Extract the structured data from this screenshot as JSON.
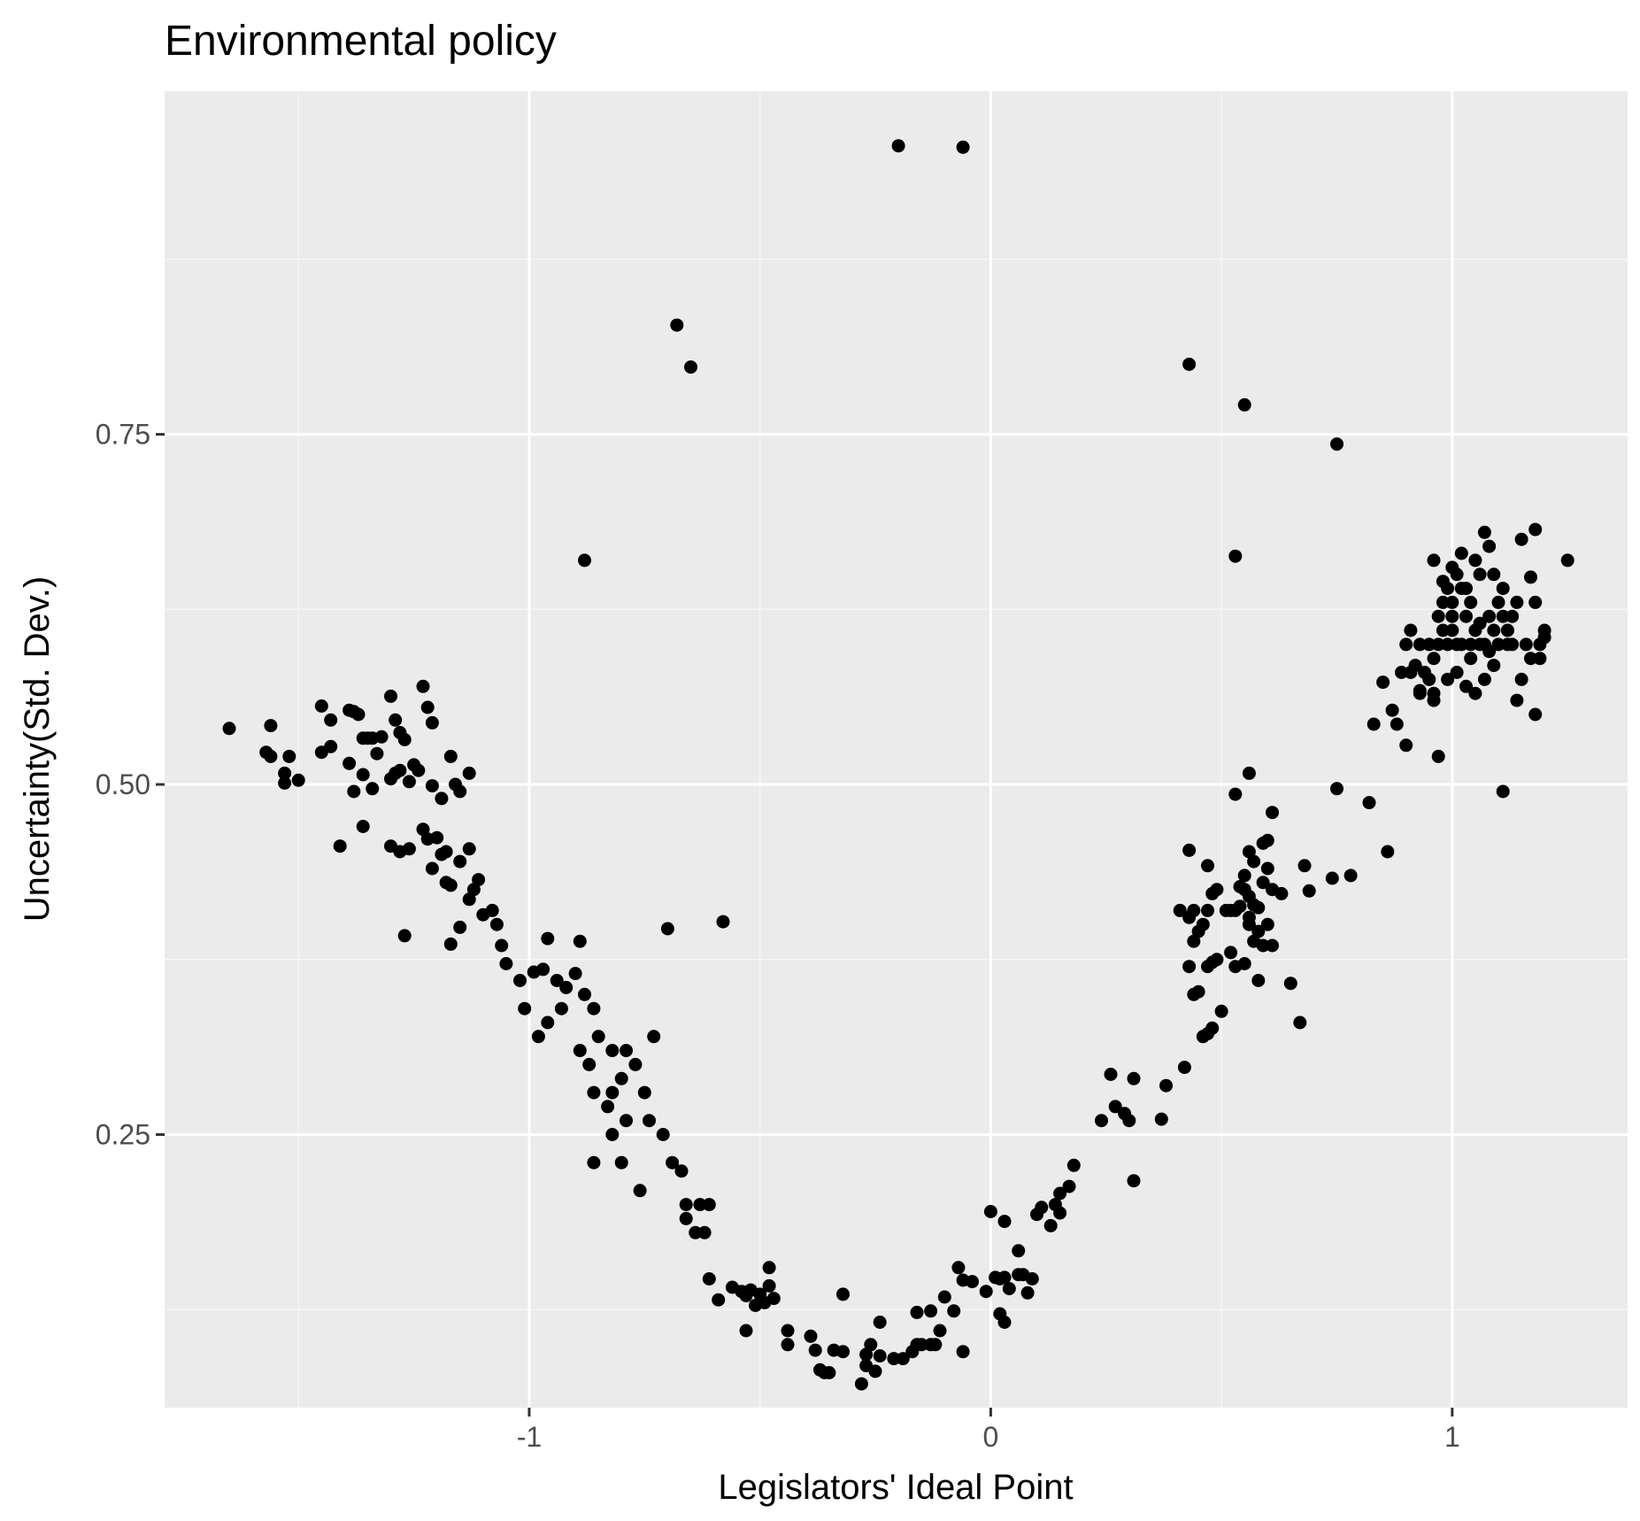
{
  "colors": {
    "panel_background": "#ebebeb",
    "major_grid": "#ffffff",
    "minor_grid": "#f5f5f5",
    "point": "#000000",
    "tick_text": "#4d4d4d",
    "tick_mark": "#333333"
  },
  "chart_data": {
    "type": "scatter",
    "title": "Environmental policy",
    "xlabel": "Legislators' Ideal Point",
    "ylabel": "Uncertainty(Std. Dev.)",
    "xlim": [
      -1.79,
      1.38
    ],
    "ylim": [
      0.055,
      0.995
    ],
    "x_ticks": [
      -1,
      0,
      1
    ],
    "x_tick_labels": [
      "-1",
      "0",
      "1"
    ],
    "y_ticks": [
      0.25,
      0.5,
      0.75
    ],
    "y_tick_labels": [
      "0.25",
      "0.50",
      "0.75"
    ],
    "grid": true,
    "legend": "none",
    "points": [
      [
        -0.2,
        0.956
      ],
      [
        -0.06,
        0.955
      ],
      [
        -0.68,
        0.828
      ],
      [
        -0.65,
        0.798
      ],
      [
        0.43,
        0.8
      ],
      [
        0.55,
        0.771
      ],
      [
        0.75,
        0.743
      ],
      [
        -0.88,
        0.66
      ],
      [
        0.53,
        0.663
      ],
      [
        -0.7,
        0.397
      ],
      [
        -0.58,
        0.402
      ],
      [
        0.75,
        0.497
      ],
      [
        0.82,
        0.487
      ],
      [
        0.86,
        0.452
      ],
      [
        0.78,
        0.435
      ],
      [
        0.74,
        0.433
      ],
      [
        -1.65,
        0.54
      ],
      [
        -1.57,
        0.523
      ],
      [
        -1.56,
        0.542
      ],
      [
        -1.56,
        0.52
      ],
      [
        -1.53,
        0.508
      ],
      [
        -1.53,
        0.501
      ],
      [
        -1.5,
        0.503
      ],
      [
        -1.52,
        0.52
      ],
      [
        -1.45,
        0.556
      ],
      [
        -1.43,
        0.546
      ],
      [
        -1.45,
        0.523
      ],
      [
        -1.43,
        0.527
      ],
      [
        -1.41,
        0.456
      ],
      [
        -1.39,
        0.553
      ],
      [
        -1.38,
        0.552
      ],
      [
        -1.37,
        0.55
      ],
      [
        -1.39,
        0.515
      ],
      [
        -1.38,
        0.495
      ],
      [
        -1.36,
        0.533
      ],
      [
        -1.35,
        0.533
      ],
      [
        -1.34,
        0.533
      ],
      [
        -1.36,
        0.507
      ],
      [
        -1.34,
        0.497
      ],
      [
        -1.33,
        0.522
      ],
      [
        -1.32,
        0.534
      ],
      [
        -1.3,
        0.563
      ],
      [
        -1.29,
        0.546
      ],
      [
        -1.28,
        0.537
      ],
      [
        -1.27,
        0.532
      ],
      [
        -1.3,
        0.504
      ],
      [
        -1.29,
        0.508
      ],
      [
        -1.28,
        0.51
      ],
      [
        -1.26,
        0.502
      ],
      [
        -1.25,
        0.514
      ],
      [
        -1.24,
        0.51
      ],
      [
        -1.23,
        0.57
      ],
      [
        -1.22,
        0.555
      ],
      [
        -1.21,
        0.544
      ],
      [
        -1.36,
        0.47
      ],
      [
        -1.3,
        0.456
      ],
      [
        -1.28,
        0.452
      ],
      [
        -1.26,
        0.454
      ],
      [
        -1.23,
        0.468
      ],
      [
        -1.22,
        0.461
      ],
      [
        -1.2,
        0.462
      ],
      [
        -1.19,
        0.45
      ],
      [
        -1.18,
        0.452
      ],
      [
        -1.21,
        0.499
      ],
      [
        -1.19,
        0.49
      ],
      [
        -1.17,
        0.52
      ],
      [
        -1.16,
        0.5
      ],
      [
        -1.15,
        0.495
      ],
      [
        -1.13,
        0.508
      ],
      [
        -1.21,
        0.44
      ],
      [
        -1.18,
        0.43
      ],
      [
        -1.17,
        0.428
      ],
      [
        -1.15,
        0.445
      ],
      [
        -1.13,
        0.418
      ],
      [
        -1.12,
        0.425
      ],
      [
        -1.1,
        0.407
      ],
      [
        -1.07,
        0.4
      ],
      [
        -1.27,
        0.392
      ],
      [
        -1.17,
        0.386
      ],
      [
        -1.15,
        0.398
      ],
      [
        -1.13,
        0.454
      ],
      [
        -1.11,
        0.432
      ],
      [
        -1.08,
        0.41
      ],
      [
        -1.06,
        0.385
      ],
      [
        -1.05,
        0.372
      ],
      [
        -1.02,
        0.36
      ],
      [
        -0.99,
        0.366
      ],
      [
        -0.97,
        0.368
      ],
      [
        -0.96,
        0.39
      ],
      [
        -0.94,
        0.36
      ],
      [
        -0.92,
        0.355
      ],
      [
        -0.9,
        0.365
      ],
      [
        -0.89,
        0.388
      ],
      [
        -0.88,
        0.35
      ],
      [
        -1.01,
        0.34
      ],
      [
        -0.98,
        0.32
      ],
      [
        -0.96,
        0.33
      ],
      [
        -0.93,
        0.34
      ],
      [
        -0.89,
        0.31
      ],
      [
        -0.86,
        0.34
      ],
      [
        -0.85,
        0.32
      ],
      [
        -0.87,
        0.3
      ],
      [
        -0.82,
        0.31
      ],
      [
        -0.79,
        0.31
      ],
      [
        -0.77,
        0.3
      ],
      [
        -0.73,
        0.32
      ],
      [
        -0.86,
        0.28
      ],
      [
        -0.83,
        0.27
      ],
      [
        -0.82,
        0.28
      ],
      [
        -0.8,
        0.29
      ],
      [
        -0.82,
        0.25
      ],
      [
        -0.79,
        0.26
      ],
      [
        -0.75,
        0.28
      ],
      [
        -0.74,
        0.26
      ],
      [
        -0.71,
        0.25
      ],
      [
        -0.86,
        0.23
      ],
      [
        -0.8,
        0.23
      ],
      [
        -0.76,
        0.21
      ],
      [
        -0.69,
        0.23
      ],
      [
        -0.67,
        0.224
      ],
      [
        -0.66,
        0.2
      ],
      [
        -0.63,
        0.2
      ],
      [
        -0.61,
        0.2
      ],
      [
        -0.66,
        0.19
      ],
      [
        -0.64,
        0.18
      ],
      [
        -0.62,
        0.18
      ],
      [
        -0.61,
        0.147
      ],
      [
        -0.59,
        0.132
      ],
      [
        -0.56,
        0.141
      ],
      [
        -0.54,
        0.138
      ],
      [
        -0.53,
        0.135
      ],
      [
        -0.52,
        0.139
      ],
      [
        -0.51,
        0.128
      ],
      [
        -0.5,
        0.136
      ],
      [
        -0.48,
        0.142
      ],
      [
        -0.49,
        0.13
      ],
      [
        -0.47,
        0.133
      ],
      [
        -0.48,
        0.155
      ],
      [
        -0.53,
        0.11
      ],
      [
        -0.44,
        0.11
      ],
      [
        -0.44,
        0.1
      ],
      [
        -0.39,
        0.106
      ],
      [
        -0.38,
        0.096
      ],
      [
        -0.37,
        0.082
      ],
      [
        -0.35,
        0.08
      ],
      [
        -0.34,
        0.096
      ],
      [
        -0.32,
        0.095
      ],
      [
        -0.36,
        0.08
      ],
      [
        -0.32,
        0.136
      ],
      [
        -0.28,
        0.072
      ],
      [
        -0.27,
        0.085
      ],
      [
        -0.27,
        0.093
      ],
      [
        -0.26,
        0.1
      ],
      [
        -0.25,
        0.081
      ],
      [
        -0.24,
        0.092
      ],
      [
        -0.24,
        0.116
      ],
      [
        -0.21,
        0.09
      ],
      [
        -0.19,
        0.09
      ],
      [
        -0.17,
        0.095
      ],
      [
        -0.16,
        0.1
      ],
      [
        -0.15,
        0.1
      ],
      [
        -0.13,
        0.1
      ],
      [
        -0.12,
        0.1
      ],
      [
        -0.11,
        0.11
      ],
      [
        -0.13,
        0.124
      ],
      [
        -0.16,
        0.123
      ],
      [
        -0.1,
        0.134
      ],
      [
        -0.08,
        0.124
      ],
      [
        -0.06,
        0.095
      ],
      [
        -0.07,
        0.155
      ],
      [
        -0.06,
        0.146
      ],
      [
        -0.04,
        0.145
      ],
      [
        -0.01,
        0.138
      ],
      [
        0.01,
        0.148
      ],
      [
        0.02,
        0.147
      ],
      [
        0.03,
        0.148
      ],
      [
        0.04,
        0.14
      ],
      [
        0.06,
        0.15
      ],
      [
        0.07,
        0.15
      ],
      [
        0.09,
        0.147
      ],
      [
        0.02,
        0.122
      ],
      [
        0.03,
        0.116
      ],
      [
        0.08,
        0.137
      ],
      [
        0.0,
        0.195
      ],
      [
        0.03,
        0.188
      ],
      [
        0.06,
        0.167
      ],
      [
        0.1,
        0.193
      ],
      [
        0.11,
        0.198
      ],
      [
        0.13,
        0.185
      ],
      [
        0.14,
        0.2
      ],
      [
        0.15,
        0.208
      ],
      [
        0.15,
        0.194
      ],
      [
        0.17,
        0.213
      ],
      [
        0.18,
        0.228
      ],
      [
        0.24,
        0.26
      ],
      [
        0.26,
        0.293
      ],
      [
        0.27,
        0.27
      ],
      [
        0.29,
        0.265
      ],
      [
        0.3,
        0.26
      ],
      [
        0.31,
        0.29
      ],
      [
        0.31,
        0.217
      ],
      [
        0.37,
        0.261
      ],
      [
        0.38,
        0.285
      ],
      [
        0.42,
        0.298
      ],
      [
        0.41,
        0.41
      ],
      [
        0.43,
        0.405
      ],
      [
        0.44,
        0.41
      ],
      [
        0.43,
        0.453
      ],
      [
        0.44,
        0.388
      ],
      [
        0.45,
        0.395
      ],
      [
        0.43,
        0.37
      ],
      [
        0.44,
        0.35
      ],
      [
        0.45,
        0.352
      ],
      [
        0.46,
        0.4
      ],
      [
        0.47,
        0.41
      ],
      [
        0.47,
        0.442
      ],
      [
        0.48,
        0.422
      ],
      [
        0.49,
        0.425
      ],
      [
        0.46,
        0.32
      ],
      [
        0.47,
        0.322
      ],
      [
        0.48,
        0.326
      ],
      [
        0.47,
        0.37
      ],
      [
        0.48,
        0.373
      ],
      [
        0.49,
        0.375
      ],
      [
        0.5,
        0.338
      ],
      [
        0.51,
        0.41
      ],
      [
        0.52,
        0.41
      ],
      [
        0.52,
        0.38
      ],
      [
        0.53,
        0.37
      ],
      [
        0.53,
        0.41
      ],
      [
        0.54,
        0.413
      ],
      [
        0.55,
        0.435
      ],
      [
        0.55,
        0.425
      ],
      [
        0.56,
        0.42
      ],
      [
        0.56,
        0.405
      ],
      [
        0.57,
        0.414
      ],
      [
        0.58,
        0.412
      ],
      [
        0.56,
        0.4
      ],
      [
        0.57,
        0.388
      ],
      [
        0.58,
        0.395
      ],
      [
        0.59,
        0.385
      ],
      [
        0.6,
        0.4
      ],
      [
        0.61,
        0.385
      ],
      [
        0.59,
        0.43
      ],
      [
        0.6,
        0.44
      ],
      [
        0.61,
        0.425
      ],
      [
        0.56,
        0.452
      ],
      [
        0.57,
        0.445
      ],
      [
        0.59,
        0.458
      ],
      [
        0.6,
        0.46
      ],
      [
        0.61,
        0.48
      ],
      [
        0.54,
        0.427
      ],
      [
        0.53,
        0.493
      ],
      [
        0.56,
        0.508
      ],
      [
        0.55,
        0.372
      ],
      [
        0.58,
        0.36
      ],
      [
        0.63,
        0.422
      ],
      [
        0.65,
        0.358
      ],
      [
        0.67,
        0.33
      ],
      [
        0.68,
        0.442
      ],
      [
        0.69,
        0.424
      ],
      [
        0.83,
        0.543
      ],
      [
        0.85,
        0.573
      ],
      [
        0.87,
        0.553
      ],
      [
        0.88,
        0.543
      ],
      [
        0.89,
        0.58
      ],
      [
        0.9,
        0.528
      ],
      [
        0.91,
        0.58
      ],
      [
        0.9,
        0.6
      ],
      [
        0.91,
        0.61
      ],
      [
        0.92,
        0.585
      ],
      [
        0.93,
        0.6
      ],
      [
        0.93,
        0.567
      ],
      [
        0.94,
        0.58
      ],
      [
        0.95,
        0.575
      ],
      [
        0.96,
        0.56
      ],
      [
        0.95,
        0.6
      ],
      [
        0.96,
        0.59
      ],
      [
        0.97,
        0.6
      ],
      [
        0.98,
        0.61
      ],
      [
        0.97,
        0.62
      ],
      [
        0.98,
        0.63
      ],
      [
        0.99,
        0.6
      ],
      [
        1.0,
        0.61
      ],
      [
        1.0,
        0.62
      ],
      [
        1.01,
        0.6
      ],
      [
        1.02,
        0.6
      ],
      [
        1.03,
        0.62
      ],
      [
        1.04,
        0.6
      ],
      [
        1.05,
        0.61
      ],
      [
        1.06,
        0.615
      ],
      [
        1.07,
        0.6
      ],
      [
        1.08,
        0.62
      ],
      [
        1.09,
        0.61
      ],
      [
        1.1,
        0.6
      ],
      [
        1.11,
        0.62
      ],
      [
        1.12,
        0.61
      ],
      [
        1.13,
        0.6
      ],
      [
        1.14,
        0.63
      ],
      [
        1.15,
        0.575
      ],
      [
        1.16,
        0.6
      ],
      [
        1.17,
        0.59
      ],
      [
        1.18,
        0.63
      ],
      [
        1.19,
        0.6
      ],
      [
        1.2,
        0.61
      ],
      [
        0.99,
        0.64
      ],
      [
        1.0,
        0.655
      ],
      [
        1.01,
        0.65
      ],
      [
        1.02,
        0.665
      ],
      [
        1.03,
        0.64
      ],
      [
        1.04,
        0.63
      ],
      [
        1.05,
        0.66
      ],
      [
        1.06,
        0.65
      ],
      [
        1.07,
        0.68
      ],
      [
        1.08,
        0.67
      ],
      [
        1.09,
        0.65
      ],
      [
        1.1,
        0.63
      ],
      [
        1.11,
        0.64
      ],
      [
        1.12,
        0.61
      ],
      [
        1.13,
        0.62
      ],
      [
        1.15,
        0.675
      ],
      [
        1.17,
        0.648
      ],
      [
        1.18,
        0.682
      ],
      [
        1.19,
        0.59
      ],
      [
        1.2,
        0.605
      ],
      [
        1.18,
        0.55
      ],
      [
        1.14,
        0.56
      ],
      [
        1.07,
        0.575
      ],
      [
        1.03,
        0.57
      ],
      [
        1.05,
        0.565
      ],
      [
        1.11,
        0.495
      ],
      [
        0.97,
        0.52
      ],
      [
        0.96,
        0.565
      ],
      [
        0.93,
        0.565
      ],
      [
        1.25,
        0.66
      ],
      [
        0.96,
        0.66
      ],
      [
        0.98,
        0.645
      ],
      [
        0.99,
        0.575
      ],
      [
        1.01,
        0.58
      ],
      [
        1.04,
        0.59
      ],
      [
        1.02,
        0.64
      ],
      [
        1.0,
        0.63
      ],
      [
        1.06,
        0.6
      ],
      [
        1.08,
        0.595
      ],
      [
        1.09,
        0.585
      ],
      [
        1.12,
        0.6
      ]
    ]
  }
}
